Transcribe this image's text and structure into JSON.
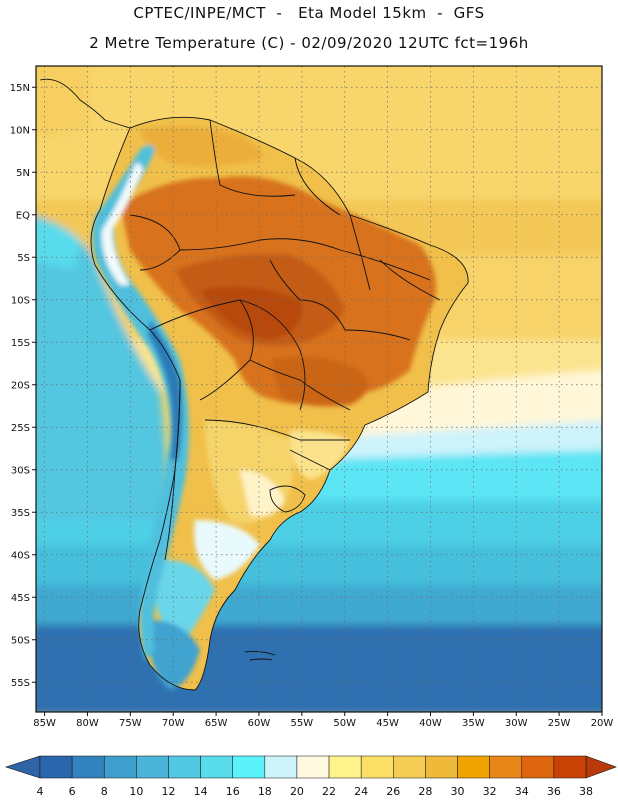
{
  "header": {
    "line1": "CPTEC/INPE/MCT  -   Eta Model 15km  -  GFS",
    "line2": "2 Metre Temperature (C) - 02/09/2020 12UTC fct=196h"
  },
  "axes": {
    "lat_ticks": [
      {
        "value": 15,
        "label": "15N"
      },
      {
        "value": 10,
        "label": "10N"
      },
      {
        "value": 5,
        "label": "5N"
      },
      {
        "value": 0,
        "label": "EQ"
      },
      {
        "value": -5,
        "label": "5S"
      },
      {
        "value": -10,
        "label": "10S"
      },
      {
        "value": -15,
        "label": "15S"
      },
      {
        "value": -20,
        "label": "20S"
      },
      {
        "value": -25,
        "label": "25S"
      },
      {
        "value": -30,
        "label": "30S"
      },
      {
        "value": -35,
        "label": "35S"
      },
      {
        "value": -40,
        "label": "40S"
      },
      {
        "value": -45,
        "label": "45S"
      },
      {
        "value": -50,
        "label": "50S"
      },
      {
        "value": -55,
        "label": "55S"
      }
    ],
    "lon_ticks": [
      {
        "value": -85,
        "label": "85W"
      },
      {
        "value": -80,
        "label": "80W"
      },
      {
        "value": -75,
        "label": "75W"
      },
      {
        "value": -70,
        "label": "70W"
      },
      {
        "value": -65,
        "label": "65W"
      },
      {
        "value": -60,
        "label": "60W"
      },
      {
        "value": -55,
        "label": "55W"
      },
      {
        "value": -50,
        "label": "50W"
      },
      {
        "value": -45,
        "label": "45W"
      },
      {
        "value": -40,
        "label": "40W"
      },
      {
        "value": -35,
        "label": "35W"
      },
      {
        "value": -30,
        "label": "30W"
      },
      {
        "value": -25,
        "label": "25W"
      },
      {
        "value": -20,
        "label": "20W"
      }
    ],
    "lat_range": [
      -58.5,
      17.5
    ],
    "lon_range": [
      -86,
      -20
    ]
  },
  "colorbar": {
    "labels": [
      "4",
      "6",
      "8",
      "10",
      "12",
      "14",
      "16",
      "18",
      "20",
      "22",
      "24",
      "26",
      "28",
      "30",
      "32",
      "34",
      "36",
      "38"
    ],
    "colors": [
      "#2a66ab",
      "#3282bd",
      "#3f9fcc",
      "#4bb4d8",
      "#52c8e2",
      "#58dcec",
      "#5cf2fa",
      "#cdf3fb",
      "#fff9e2",
      "#fff38e",
      "#fbe068",
      "#f5cd55",
      "#efb93a",
      "#f0a400",
      "#e8861a",
      "#dd660e",
      "#c84206"
    ],
    "under_color": "#2f64a6",
    "over_color": "#b83a0c"
  }
}
